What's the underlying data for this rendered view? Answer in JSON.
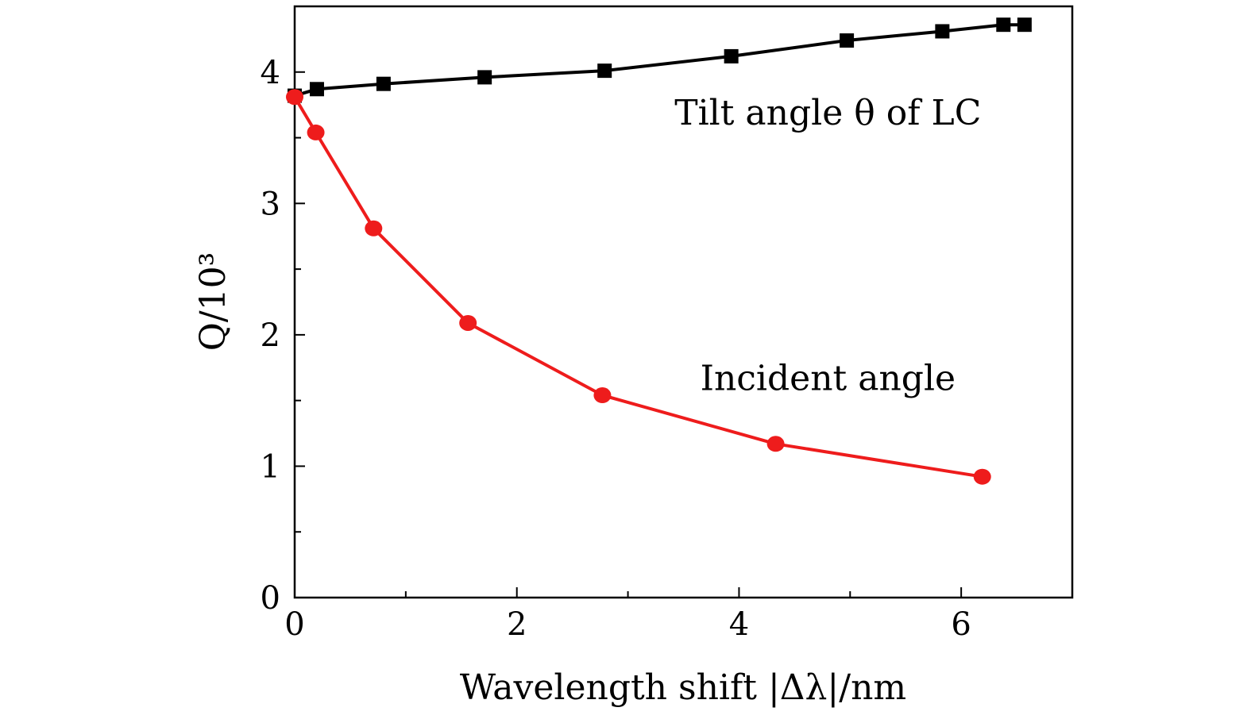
{
  "chart_data": {
    "type": "line",
    "title": "",
    "xlabel": "Wavelength shift |Δλ|/nm",
    "ylabel": "Q/10³",
    "xlim": [
      0,
      7
    ],
    "ylim": [
      0,
      4.5
    ],
    "xticks": [
      0,
      2,
      4,
      6
    ],
    "yticks": [
      0,
      1,
      2,
      3,
      4
    ],
    "x_minor_step": 1,
    "y_minor_step": 0.5,
    "grid": false,
    "legend": "none",
    "series": [
      {
        "color": "#000000",
        "marker": "square",
        "x": [
          0,
          0.2,
          0.8,
          1.71,
          2.79,
          3.93,
          4.97,
          5.83,
          6.38,
          6.57
        ],
        "y": [
          3.82,
          3.87,
          3.91,
          3.96,
          4.01,
          4.12,
          4.24,
          4.31,
          4.36,
          4.36
        ]
      },
      {
        "color": "#ee1c1c",
        "marker": "circle",
        "x": [
          0,
          0.19,
          0.71,
          1.56,
          2.77,
          4.33,
          6.19
        ],
        "y": [
          3.81,
          3.54,
          2.81,
          2.09,
          1.54,
          1.17,
          0.92
        ]
      }
    ],
    "annotations": [
      {
        "text": "Tilt angle θ of LC",
        "x": 4.8,
        "y": 3.6
      },
      {
        "text": "Incident angle",
        "x": 4.8,
        "y": 1.58
      }
    ]
  }
}
